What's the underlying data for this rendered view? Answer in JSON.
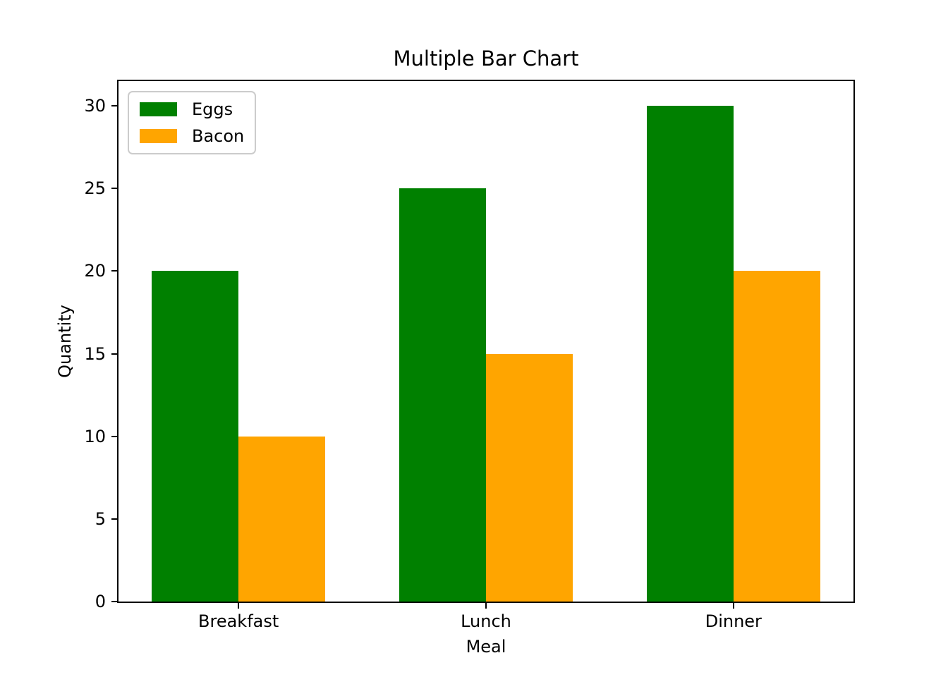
{
  "chart_data": {
    "type": "bar",
    "title": "Multiple Bar Chart",
    "xlabel": "Meal",
    "ylabel": "Quantity",
    "categories": [
      "Breakfast",
      "Lunch",
      "Dinner"
    ],
    "series": [
      {
        "name": "Eggs",
        "color": "#008000",
        "values": [
          20,
          25,
          30
        ]
      },
      {
        "name": "Bacon",
        "color": "#FFA500",
        "values": [
          10,
          15,
          20
        ]
      }
    ],
    "yticks": [
      0,
      5,
      10,
      15,
      20,
      25,
      30
    ],
    "ylim": [
      0,
      31.5
    ],
    "xlim": [
      -0.485,
      2.485
    ],
    "bar_width": 0.35,
    "grid": false,
    "legend_position": "upper left",
    "colors": {
      "axes": "#000000",
      "legend_border": "#cccccc",
      "background": "#ffffff"
    }
  }
}
